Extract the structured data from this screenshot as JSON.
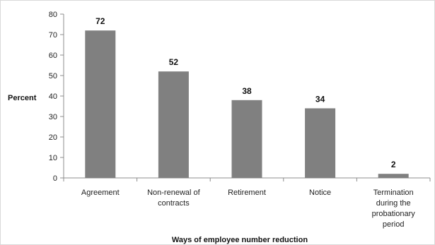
{
  "chart_data": {
    "type": "bar",
    "title": "",
    "ylabel": "Percent",
    "xlabel": "Ways of employee number reduction",
    "ylim": [
      0,
      80
    ],
    "yticks": [
      0,
      10,
      20,
      30,
      40,
      50,
      60,
      70,
      80
    ],
    "grid": false,
    "legend": "none",
    "bar_color": "#808080",
    "categories": [
      [
        "Agreement"
      ],
      [
        "Non-renewal of",
        "contracts"
      ],
      [
        "Retirement"
      ],
      [
        "Notice"
      ],
      [
        "Termination",
        "during the",
        "probationary",
        "period"
      ]
    ],
    "values": [
      72,
      52,
      38,
      34,
      2
    ],
    "data_labels": [
      "72",
      "52",
      "38",
      "34",
      "2"
    ]
  }
}
